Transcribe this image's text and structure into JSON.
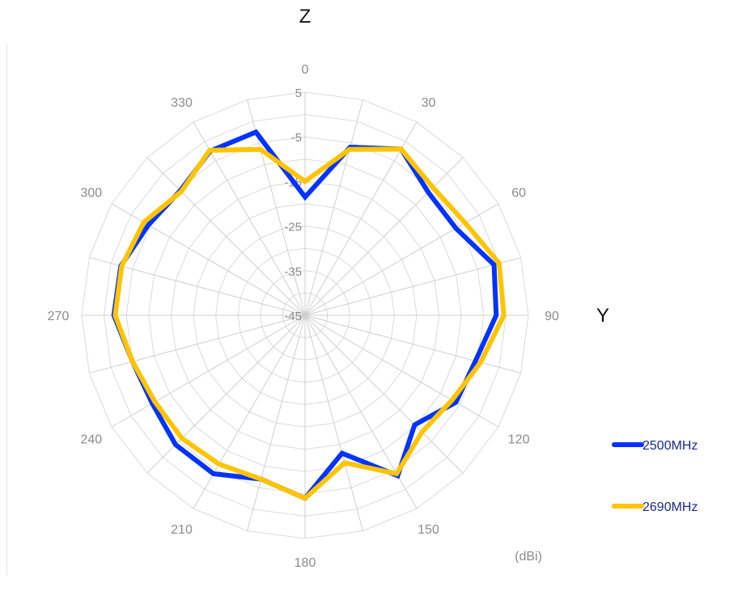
{
  "chart_data": {
    "type": "radar",
    "axis_labels": {
      "top": "Z",
      "right": "Y"
    },
    "unit_label": "(dBi)",
    "radial_range": [
      -45,
      5
    ],
    "radial_ticks": [
      -45,
      -35,
      -25,
      -15,
      -5,
      5
    ],
    "angles": [
      0,
      15,
      30,
      45,
      60,
      75,
      90,
      105,
      120,
      135,
      150,
      165,
      180,
      195,
      210,
      225,
      240,
      255,
      270,
      285,
      300,
      315,
      330,
      345
    ],
    "angle_labels": [
      "0",
      "30",
      "60",
      "90",
      "120",
      "150",
      "180",
      "210",
      "240",
      "270",
      "300",
      "330"
    ],
    "grid": true,
    "legend_position": "right",
    "series": [
      {
        "name": "2500MHz",
        "color": "#0033ff",
        "values": [
          -18.5,
          -6,
          -2,
          -6,
          -6,
          -1.2,
          -2.2,
          -5.5,
          -6,
          -10.3,
          -3.5,
          -13,
          -4,
          -7,
          -4,
          -4,
          -5.5,
          -5,
          -2.2,
          -2.3,
          -4.5,
          -5.5,
          -2.5,
          -2.5
        ]
      },
      {
        "name": "2690MHz",
        "color": "#ffc400",
        "values": [
          -15,
          -6.5,
          -2,
          -4.5,
          -3.6,
          0,
          -0.5,
          -4.3,
          -7,
          -8,
          -4,
          -10.8,
          -4,
          -7,
          -6.5,
          -6,
          -6.2,
          -5,
          -2.5,
          -2.5,
          -3.3,
          -5.8,
          -2.3,
          -6.5
        ]
      }
    ]
  }
}
